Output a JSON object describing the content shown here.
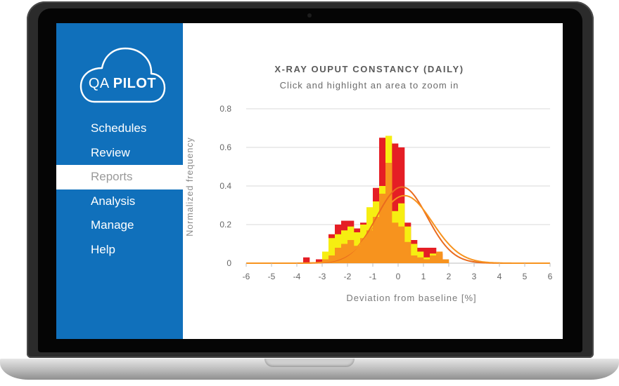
{
  "app": {
    "logo": {
      "prefix": "QA",
      "brand": "PILOT"
    }
  },
  "sidebar": {
    "items": [
      {
        "label": "Schedules",
        "active": false
      },
      {
        "label": "Review",
        "active": false
      },
      {
        "label": "Reports",
        "active": true
      },
      {
        "label": "Analysis",
        "active": false
      },
      {
        "label": "Manage",
        "active": false
      },
      {
        "label": "Help",
        "active": false
      }
    ]
  },
  "colors": {
    "sidebar": "#1070bb",
    "red": "#e51e25",
    "yellow": "#f6ee11",
    "orange": "#f7931e",
    "curve": "#ea6b1e"
  },
  "chart_data": {
    "type": "bar",
    "title": "X-RAY OUPUT CONSTANCY (DAILY)",
    "subtitle": "Click and highlight an area to zoom in",
    "xlabel": "Deviation from baseline [%]",
    "ylabel": "Normalized frequency",
    "xlim": [
      -6,
      6
    ],
    "ylim": [
      0,
      0.8
    ],
    "xticks": [
      "-6",
      "-5",
      "-4",
      "-3",
      "-2",
      "-1",
      "0",
      "1",
      "2",
      "3",
      "4",
      "5",
      "6"
    ],
    "yticks": [
      "0",
      "0.2",
      "0.4",
      "0.6",
      "0.8"
    ],
    "bin_width": 0.25,
    "grid": true,
    "series": [
      {
        "color": "#e51e25",
        "bins": [
          {
            "x": -3.75,
            "y": 0.03
          },
          {
            "x": -3.25,
            "y": 0.02
          },
          {
            "x": -3.0,
            "y": 0.04
          },
          {
            "x": -2.75,
            "y": 0.15
          },
          {
            "x": -2.5,
            "y": 0.2
          },
          {
            "x": -2.25,
            "y": 0.22
          },
          {
            "x": -2.0,
            "y": 0.22
          },
          {
            "x": -1.75,
            "y": 0.18
          },
          {
            "x": -1.5,
            "y": 0.21
          },
          {
            "x": -1.25,
            "y": 0.28
          },
          {
            "x": -1.0,
            "y": 0.39
          },
          {
            "x": -0.75,
            "y": 0.65
          },
          {
            "x": -0.5,
            "y": 0.63
          },
          {
            "x": -0.25,
            "y": 0.62
          },
          {
            "x": 0.0,
            "y": 0.6
          },
          {
            "x": 0.25,
            "y": 0.21
          },
          {
            "x": 0.5,
            "y": 0.12
          },
          {
            "x": 0.75,
            "y": 0.08
          },
          {
            "x": 1.0,
            "y": 0.08
          },
          {
            "x": 1.25,
            "y": 0.08
          },
          {
            "x": 1.5,
            "y": 0.05
          }
        ]
      },
      {
        "color": "#f6ee11",
        "bins": [
          {
            "x": -3.0,
            "y": 0.06
          },
          {
            "x": -2.75,
            "y": 0.13
          },
          {
            "x": -2.5,
            "y": 0.15
          },
          {
            "x": -2.25,
            "y": 0.17
          },
          {
            "x": -2.0,
            "y": 0.19
          },
          {
            "x": -1.75,
            "y": 0.16
          },
          {
            "x": -1.5,
            "y": 0.2
          },
          {
            "x": -1.25,
            "y": 0.29
          },
          {
            "x": -1.0,
            "y": 0.32
          },
          {
            "x": -0.75,
            "y": 0.4
          },
          {
            "x": -0.5,
            "y": 0.66
          },
          {
            "x": -0.25,
            "y": 0.27
          },
          {
            "x": 0.0,
            "y": 0.31
          },
          {
            "x": 0.25,
            "y": 0.19
          },
          {
            "x": 0.5,
            "y": 0.1
          },
          {
            "x": 0.75,
            "y": 0.06
          },
          {
            "x": 1.0,
            "y": 0.03
          },
          {
            "x": 1.25,
            "y": 0.05
          },
          {
            "x": 1.5,
            "y": 0.02
          }
        ]
      },
      {
        "color": "#f7931e",
        "bins": [
          {
            "x": -3.0,
            "y": 0.02
          },
          {
            "x": -2.75,
            "y": 0.04
          },
          {
            "x": -2.5,
            "y": 0.08
          },
          {
            "x": -2.25,
            "y": 0.1
          },
          {
            "x": -2.0,
            "y": 0.12
          },
          {
            "x": -1.75,
            "y": 0.09
          },
          {
            "x": -1.5,
            "y": 0.13
          },
          {
            "x": -1.25,
            "y": 0.17
          },
          {
            "x": -1.0,
            "y": 0.24
          },
          {
            "x": -0.75,
            "y": 0.36
          },
          {
            "x": -0.5,
            "y": 0.52
          },
          {
            "x": -0.25,
            "y": 0.21
          },
          {
            "x": 0.0,
            "y": 0.19
          },
          {
            "x": 0.25,
            "y": 0.11
          },
          {
            "x": 0.5,
            "y": 0.04
          },
          {
            "x": 0.75,
            "y": 0.03
          },
          {
            "x": 1.0,
            "y": 0.02
          },
          {
            "x": 1.25,
            "y": 0.04
          },
          {
            "x": 1.5,
            "y": 0.06
          },
          {
            "x": 1.75,
            "y": 0.02
          }
        ]
      }
    ],
    "curves": [
      {
        "type": "gaussian",
        "mean": 0.15,
        "sd": 1.0,
        "peak": 0.395,
        "color": "#ea6b1e"
      },
      {
        "type": "gaussian",
        "mean": 0.25,
        "sd": 1.1,
        "peak": 0.35,
        "color": "#f7931e"
      }
    ]
  }
}
